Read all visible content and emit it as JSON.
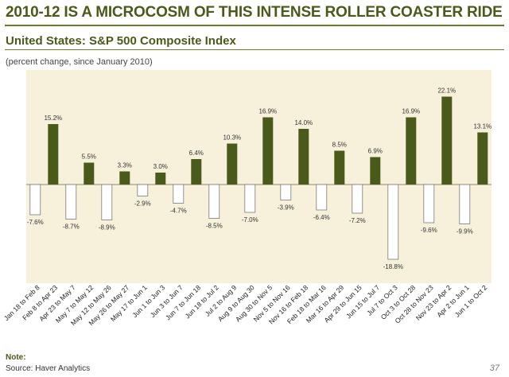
{
  "header": {
    "title": "2010-12 IS A MICROCOSM OF THIS INTENSE ROLLER COASTER RIDE",
    "subtitle": "United States: S&P 500 Composite Index",
    "note_paren": "(percent change, since January 2010)"
  },
  "footer": {
    "note_label": "Note:",
    "source": "Source: Haver Analytics",
    "page_number": "37"
  },
  "colors": {
    "title": "#4a5a1a",
    "positive_bar": "#4a5a1a",
    "negative_bar": "#ffffff",
    "plot_background": "#f7f1dc"
  },
  "chart_data": {
    "type": "bar",
    "title": "",
    "xlabel": "",
    "ylabel": "",
    "ylim": [
      -22,
      24
    ],
    "grid": false,
    "categories": [
      "Jan 18 to Feb 8",
      "Feb 8 to Apr 23",
      "Apr 23 to May 7",
      "May 7 to May 12",
      "May 12 to May 26",
      "May 26 to May 27",
      "May 17 to Jun 1",
      "Jun 1 to Jun 3",
      "Jun 3 to Jun 7",
      "Jun 7 to Jun 18",
      "Jun 18 to Jul 2",
      "Jul 2 to Aug 9",
      "Aug 9 to Aug 30",
      "Aug 30 to Nov 5",
      "Nov 5 to Nov 16",
      "Nov 16 to Feb 18",
      "Feb 18 to Mar 16",
      "Mar 16 to Apr 29",
      "Apr 29 to Jun 15",
      "Jun 15 to Jul 7",
      "Jul 7 to Oct 3",
      "Oct 3 to Oct 28",
      "Oct 28 to Nov 23",
      "Nov 23 to Apr 2",
      "Apr 2 to Jun 1",
      "Jun 1 to Oct 2"
    ],
    "values": [
      -7.6,
      15.2,
      -8.7,
      5.5,
      -8.9,
      3.3,
      -2.9,
      3.0,
      -4.7,
      6.4,
      -8.5,
      10.3,
      -7.0,
      16.9,
      -3.9,
      14.0,
      -6.4,
      8.5,
      -7.2,
      6.9,
      -18.8,
      16.9,
      -9.6,
      22.1,
      -9.9,
      13.1
    ],
    "data_labels": [
      "-7.6%",
      "15.2%",
      "-8.7%",
      "5.5%",
      "-8.9%",
      "3.3%",
      "-2.9%",
      "3.0%",
      "-4.7%",
      "6.4%",
      "-8.5%",
      "10.3%",
      "-7.0%",
      "16.9%",
      "-3.9%",
      "14.0%",
      "-6.4%",
      "8.5%",
      "-7.2%",
      "6.9%",
      "-18.8%",
      "16.9%",
      "-9.6%",
      "22.1%",
      "-9.9%",
      "13.1%"
    ]
  }
}
